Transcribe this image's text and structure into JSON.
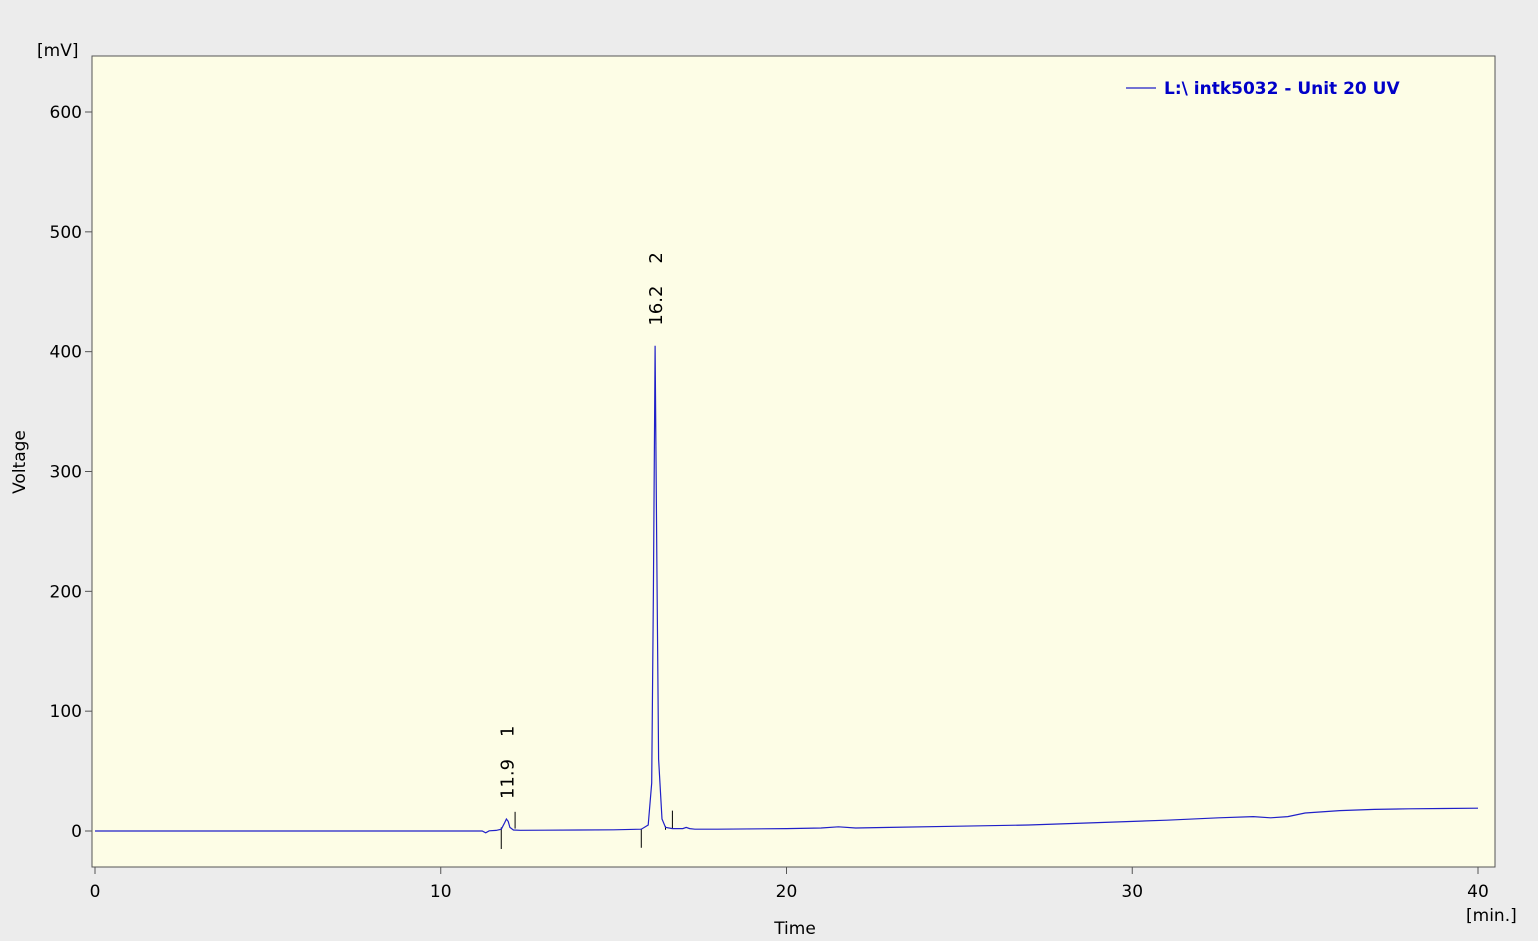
{
  "chart_data": {
    "type": "line",
    "title": "",
    "xlabel": "Time",
    "ylabel": "Voltage",
    "x_unit": "[min.]",
    "y_unit": "[mV]",
    "xlim": [
      0,
      40.5
    ],
    "ylim": [
      -30,
      650
    ],
    "x_ticks": [
      0,
      10,
      20,
      30,
      40
    ],
    "y_ticks": [
      0,
      100,
      200,
      300,
      400,
      500,
      600
    ],
    "grid": false,
    "legend_position": "top-right",
    "plot_background": "#fdfde6",
    "page_background": "#ececec",
    "series": [
      {
        "name": "L:\\ intk5032 - Unit 20 UV",
        "color": "#2020c8",
        "x": [
          0,
          5,
          10,
          11.0,
          11.2,
          11.3,
          11.4,
          11.6,
          11.75,
          11.85,
          11.9,
          11.95,
          12.0,
          12.1,
          12.3,
          13,
          14,
          15,
          15.8,
          16.0,
          16.1,
          16.15,
          16.2,
          16.25,
          16.3,
          16.4,
          16.5,
          16.7,
          17.0,
          17.1,
          17.2,
          17.35,
          18,
          20,
          21,
          21.5,
          22,
          23,
          25,
          27,
          29,
          31,
          32.5,
          33.5,
          34,
          34.5,
          35,
          36,
          37,
          38,
          39,
          40
        ],
        "y": [
          0,
          0,
          0,
          0,
          0,
          -1.5,
          0.2,
          0.5,
          1.5,
          7,
          10,
          8,
          3,
          0.8,
          0.6,
          0.7,
          0.8,
          1.0,
          1.5,
          5,
          40,
          200,
          405,
          230,
          60,
          10,
          3,
          2,
          2,
          3,
          2,
          1.5,
          1.5,
          2,
          2.5,
          3.5,
          2.5,
          3,
          4,
          5,
          7,
          9,
          11,
          12,
          11,
          12,
          15,
          17,
          18,
          18.5,
          18.8,
          19
        ]
      }
    ],
    "peak_annotations": [
      {
        "number": "1",
        "retention_time": "11.9",
        "x": 11.9
      },
      {
        "number": "2",
        "retention_time": "16.2",
        "x": 16.2
      }
    ],
    "integration_markers": [
      {
        "x": 11.75,
        "from": -15,
        "to": 3
      },
      {
        "x": 12.15,
        "from": 2,
        "to": 16
      },
      {
        "x": 15.8,
        "from": -14,
        "to": 2
      },
      {
        "x": 16.5,
        "from": 1,
        "to": 4
      },
      {
        "x": 16.7,
        "from": 2,
        "to": 17
      }
    ]
  }
}
